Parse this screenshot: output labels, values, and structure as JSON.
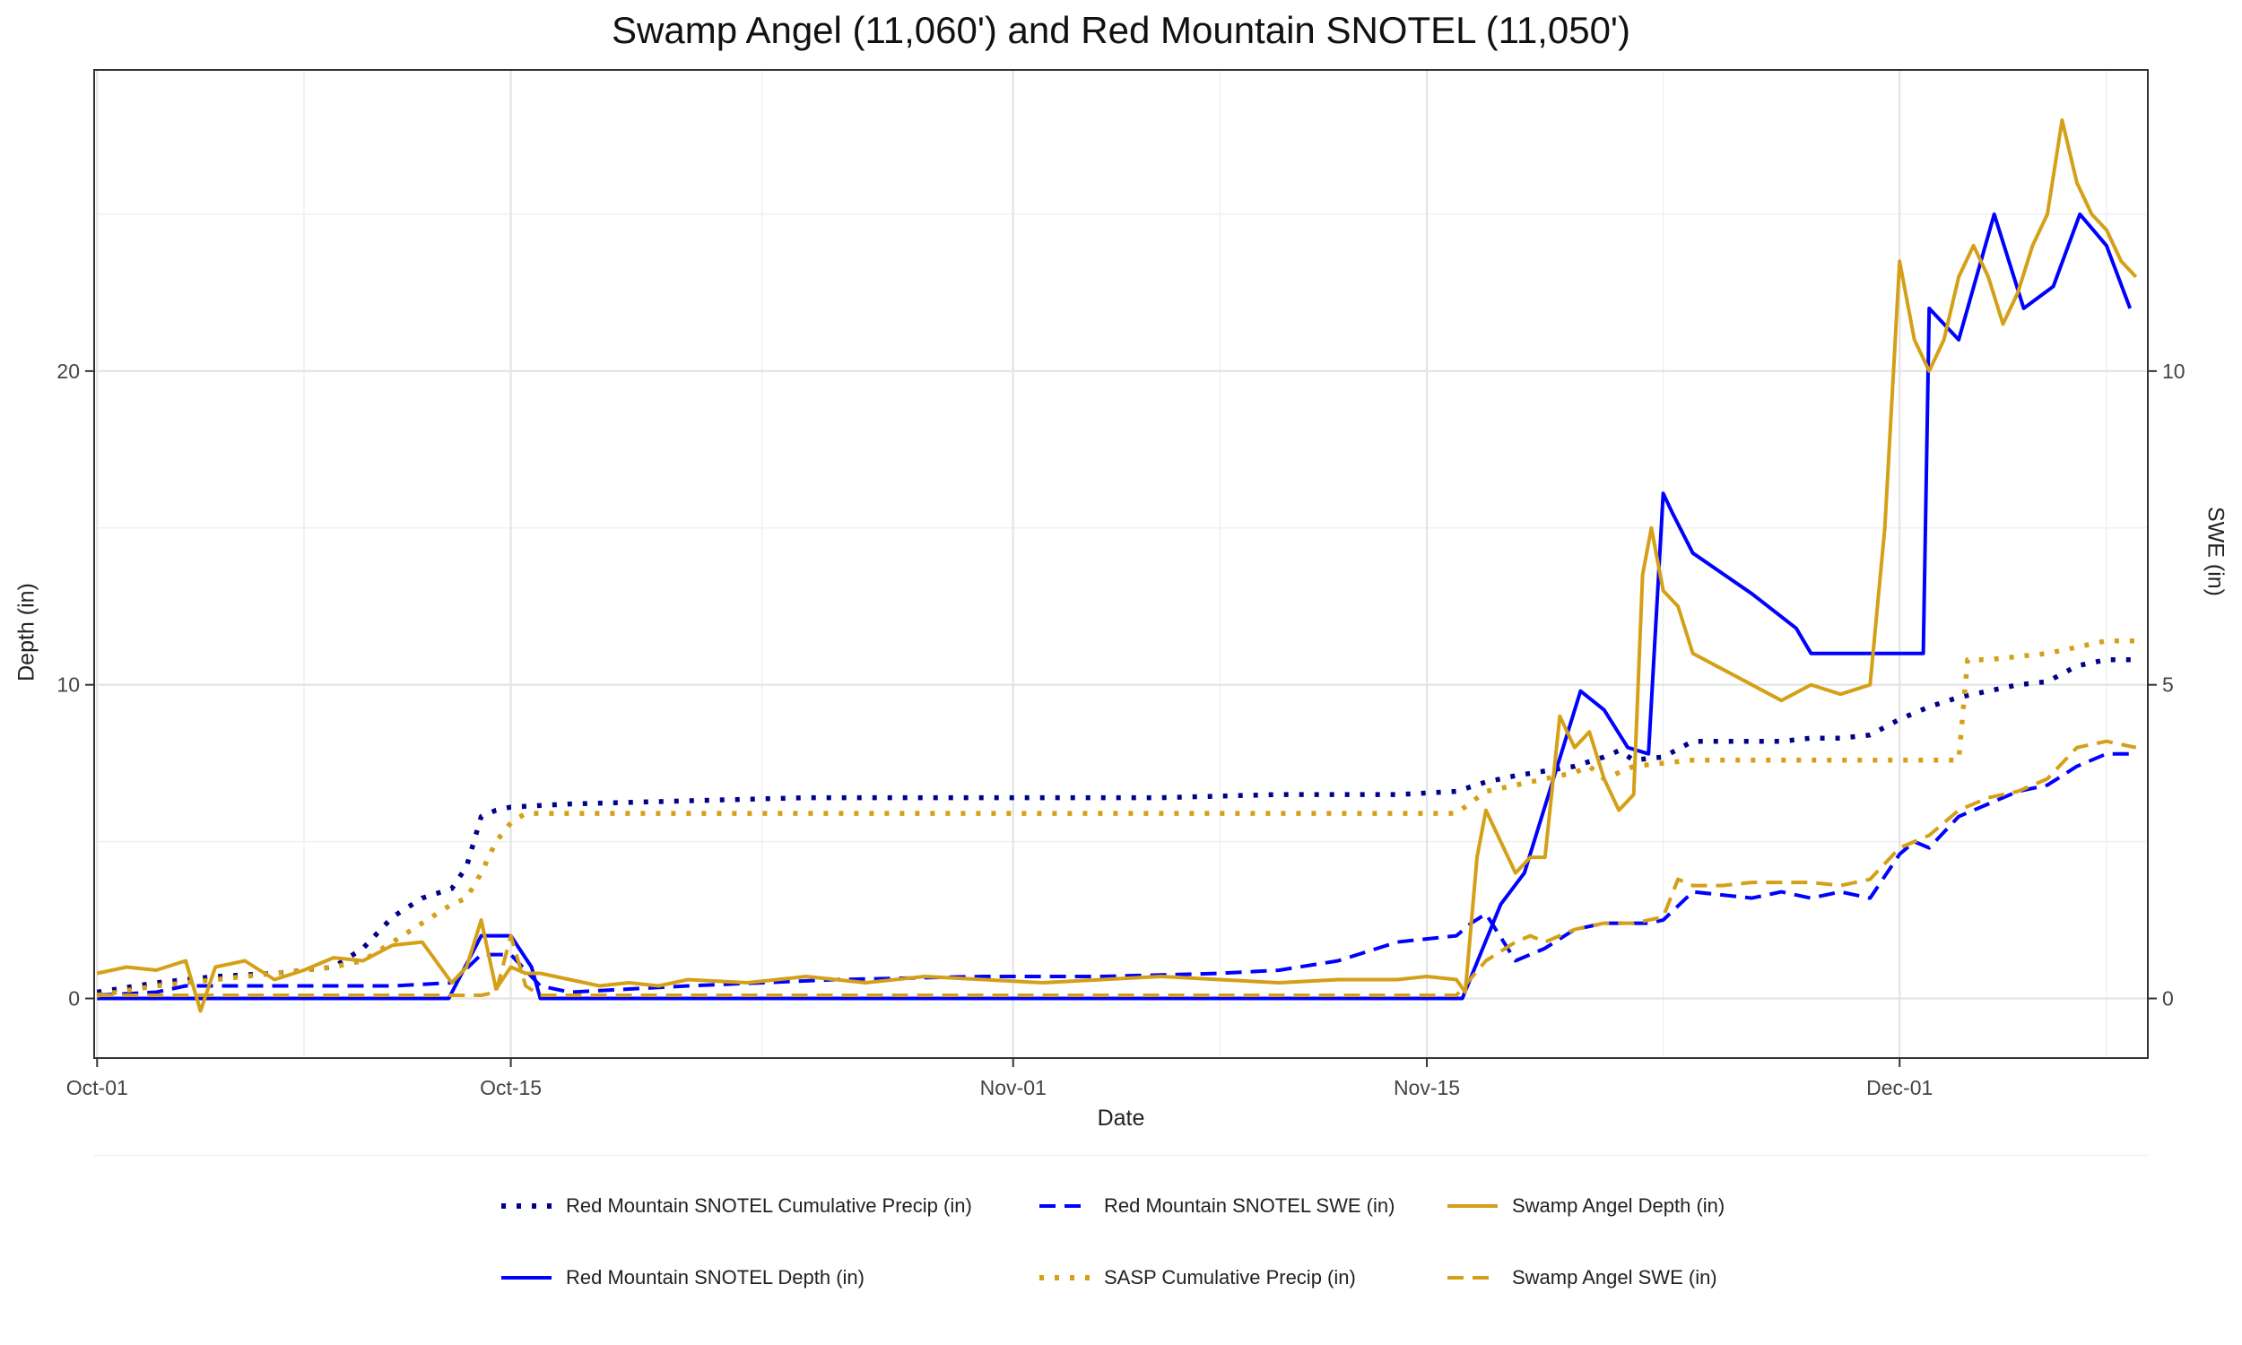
{
  "chart_data": {
    "type": "line",
    "title": "Swamp Angel (11,060') and Red Mountain SNOTEL (11,050')",
    "xlabel": "Date",
    "ylabel_left": "Depth (in)",
    "ylabel_right": "SWE (in)",
    "x_ticks": [
      "Oct-01",
      "Oct-15",
      "Nov-01",
      "Nov-15",
      "Dec-01"
    ],
    "y_ticks_left": [
      "0",
      "10",
      "20"
    ],
    "y_ticks_right": [
      "0",
      "5",
      "10"
    ],
    "xlim": [
      -0.1,
      69.4
    ],
    "ylim_left": [
      -1.9,
      29.6
    ],
    "ylim_right": [
      -0.95,
      14.8
    ],
    "grid": true,
    "legend_position": "bottom",
    "series": [
      {
        "name": "Red Mountain SNOTEL Cumulative Precip (in)",
        "axis": "left",
        "color": "#00008B",
        "style": "dotted",
        "x": [
          0,
          2,
          4,
          6,
          8,
          9,
          10,
          11,
          12,
          12.5,
          13,
          13.5,
          14,
          16,
          20,
          24,
          28,
          32,
          36,
          40,
          44,
          46,
          47,
          48,
          50,
          51,
          51.5,
          52,
          53,
          54,
          55,
          57,
          58,
          59,
          60,
          61,
          62,
          63,
          64,
          65,
          66,
          67,
          68,
          69
        ],
        "y": [
          0.2,
          0.5,
          0.7,
          0.8,
          1.0,
          1.6,
          2.6,
          3.2,
          3.5,
          4.2,
          5.8,
          6.0,
          6.1,
          6.2,
          6.3,
          6.4,
          6.4,
          6.4,
          6.4,
          6.5,
          6.5,
          6.6,
          6.9,
          7.1,
          7.4,
          7.7,
          7.9,
          7.6,
          7.7,
          8.2,
          8.2,
          8.2,
          8.3,
          8.3,
          8.4,
          8.9,
          9.3,
          9.6,
          9.8,
          10.0,
          10.1,
          10.6,
          10.8,
          10.8
        ]
      },
      {
        "name": "Red Mountain SNOTEL Depth (in)",
        "axis": "left",
        "color": "#0000FF",
        "style": "solid",
        "x": [
          0,
          11.9,
          13,
          14,
          14.7,
          15,
          20,
          30,
          40,
          45,
          46.2,
          47.5,
          48.3,
          50.2,
          51,
          51.8,
          52.5,
          53,
          53.3,
          54,
          56,
          57.5,
          58,
          60,
          61,
          61.8,
          62,
          63,
          64.2,
          65.2,
          66.2,
          67.1,
          68,
          68.8
        ],
        "y": [
          0,
          0,
          2.0,
          2.0,
          1.0,
          0,
          0,
          0,
          0,
          0,
          0,
          3.0,
          4.0,
          9.8,
          9.2,
          8.0,
          7.8,
          16.1,
          15.5,
          14.2,
          12.9,
          11.8,
          11.0,
          11.0,
          11.0,
          11.0,
          22.0,
          21.0,
          25.0,
          22.0,
          22.7,
          25.0,
          24.0,
          22.0
        ]
      },
      {
        "name": "Red Mountain SNOTEL SWE (in)",
        "axis": "right",
        "color": "#0000FF",
        "style": "dashed",
        "x": [
          0,
          2,
          3,
          8,
          9,
          10,
          12,
          13,
          14,
          15,
          16,
          20,
          25,
          30,
          34,
          38,
          40,
          42,
          43,
          44,
          45,
          46,
          46.5,
          47,
          48,
          49,
          50,
          51,
          52,
          52.5,
          53,
          54,
          55,
          56,
          57,
          58,
          59,
          60,
          61,
          61.5,
          62,
          63,
          64,
          65,
          66,
          67,
          68,
          69
        ],
        "y": [
          0.05,
          0.1,
          0.2,
          0.2,
          0.2,
          0.2,
          0.25,
          0.7,
          0.7,
          0.2,
          0.1,
          0.2,
          0.3,
          0.35,
          0.35,
          0.4,
          0.45,
          0.6,
          0.75,
          0.9,
          0.95,
          1.0,
          1.2,
          1.35,
          0.6,
          0.8,
          1.1,
          1.2,
          1.2,
          1.2,
          1.25,
          1.7,
          1.65,
          1.6,
          1.7,
          1.6,
          1.7,
          1.6,
          2.3,
          2.5,
          2.4,
          2.9,
          3.1,
          3.3,
          3.4,
          3.7,
          3.9,
          3.9
        ]
      },
      {
        "name": "SASP Cumulative Precip (in)",
        "axis": "right",
        "color": "#D4A017",
        "style": "dotted",
        "x": [
          0,
          2,
          4,
          6,
          8,
          9,
          10,
          11,
          12,
          12.5,
          13,
          13.5,
          14,
          14.5,
          16,
          20,
          25,
          30,
          35,
          40,
          45,
          46,
          47,
          48,
          49,
          50,
          50.5,
          51,
          51.5,
          52,
          53,
          54,
          56,
          58,
          60,
          61,
          61.5,
          62,
          63,
          63.3,
          64,
          66,
          67,
          68,
          69
        ],
        "y": [
          0.05,
          0.2,
          0.3,
          0.4,
          0.5,
          0.6,
          0.9,
          1.2,
          1.5,
          1.6,
          2.0,
          2.5,
          2.8,
          2.95,
          2.95,
          2.95,
          2.95,
          2.95,
          2.95,
          2.95,
          2.95,
          2.95,
          3.3,
          3.4,
          3.5,
          3.6,
          3.7,
          3.5,
          3.6,
          3.7,
          3.75,
          3.8,
          3.8,
          3.8,
          3.8,
          3.8,
          3.8,
          3.8,
          3.8,
          5.4,
          5.4,
          5.5,
          5.6,
          5.7,
          5.7
        ]
      },
      {
        "name": "Swamp Angel Depth (in)",
        "axis": "left",
        "color": "#D4A017",
        "style": "solid",
        "x": [
          0,
          1,
          2,
          3,
          3.5,
          4,
          5,
          6,
          7,
          8,
          9,
          10,
          11,
          12,
          12.5,
          13,
          13.5,
          14,
          14.5,
          15,
          16,
          17,
          18,
          19,
          20,
          22,
          24,
          26,
          28,
          30,
          32,
          34,
          36,
          38,
          40,
          42,
          44,
          45,
          46,
          46.3,
          46.7,
          47,
          47.5,
          48,
          48.5,
          49,
          49.5,
          50,
          50.5,
          51,
          51.5,
          52,
          52.3,
          52.6,
          53,
          53.5,
          54,
          55,
          56,
          57,
          58,
          59,
          60,
          60.5,
          61,
          61.5,
          62,
          62.5,
          63,
          63.5,
          64,
          64.5,
          65,
          65.5,
          66,
          66.5,
          67,
          67.5,
          68,
          68.5,
          69
        ],
        "y": [
          0.8,
          1.0,
          0.9,
          1.2,
          -0.4,
          1.0,
          1.2,
          0.6,
          0.9,
          1.3,
          1.2,
          1.7,
          1.8,
          0.5,
          1.0,
          2.5,
          0.3,
          1.0,
          0.8,
          0.8,
          0.6,
          0.4,
          0.5,
          0.4,
          0.6,
          0.5,
          0.7,
          0.5,
          0.7,
          0.6,
          0.5,
          0.6,
          0.7,
          0.6,
          0.5,
          0.6,
          0.6,
          0.7,
          0.6,
          0.2,
          4.5,
          6.0,
          5.0,
          4.0,
          4.5,
          4.5,
          9.0,
          8.0,
          8.5,
          7.0,
          6.0,
          6.5,
          13.5,
          15.0,
          13.0,
          12.5,
          11.0,
          10.5,
          10.0,
          9.5,
          10.0,
          9.7,
          10.0,
          15.0,
          23.5,
          21.0,
          20.0,
          21.0,
          23.0,
          24.0,
          23.0,
          21.5,
          22.5,
          24.0,
          25.0,
          28.0,
          26.0,
          25.0,
          24.5,
          23.5,
          23.0
        ]
      },
      {
        "name": "Swamp Angel SWE (in)",
        "axis": "right",
        "color": "#D4A017",
        "style": "dashed",
        "x": [
          0,
          2,
          4,
          6,
          8,
          10,
          11,
          12,
          12.5,
          13,
          13.5,
          14,
          14.5,
          15,
          16,
          20,
          25,
          30,
          35,
          40,
          45,
          46,
          47,
          48,
          48.5,
          49,
          50,
          51,
          52,
          52.5,
          53,
          53.5,
          54,
          55,
          56,
          57,
          58,
          59,
          60,
          61,
          62,
          63,
          64,
          65,
          66,
          67,
          68,
          69
        ],
        "y": [
          0.05,
          0.05,
          0.05,
          0.05,
          0.05,
          0.05,
          0.05,
          0.05,
          0.05,
          0.05,
          0.1,
          1.0,
          0.2,
          0.05,
          0.05,
          0.05,
          0.05,
          0.05,
          0.05,
          0.05,
          0.05,
          0.05,
          0.6,
          0.9,
          1.0,
          0.9,
          1.1,
          1.2,
          1.2,
          1.25,
          1.3,
          1.9,
          1.8,
          1.8,
          1.85,
          1.85,
          1.85,
          1.8,
          1.9,
          2.4,
          2.6,
          3.0,
          3.2,
          3.3,
          3.5,
          4.0,
          4.1,
          4.0
        ]
      }
    ]
  }
}
